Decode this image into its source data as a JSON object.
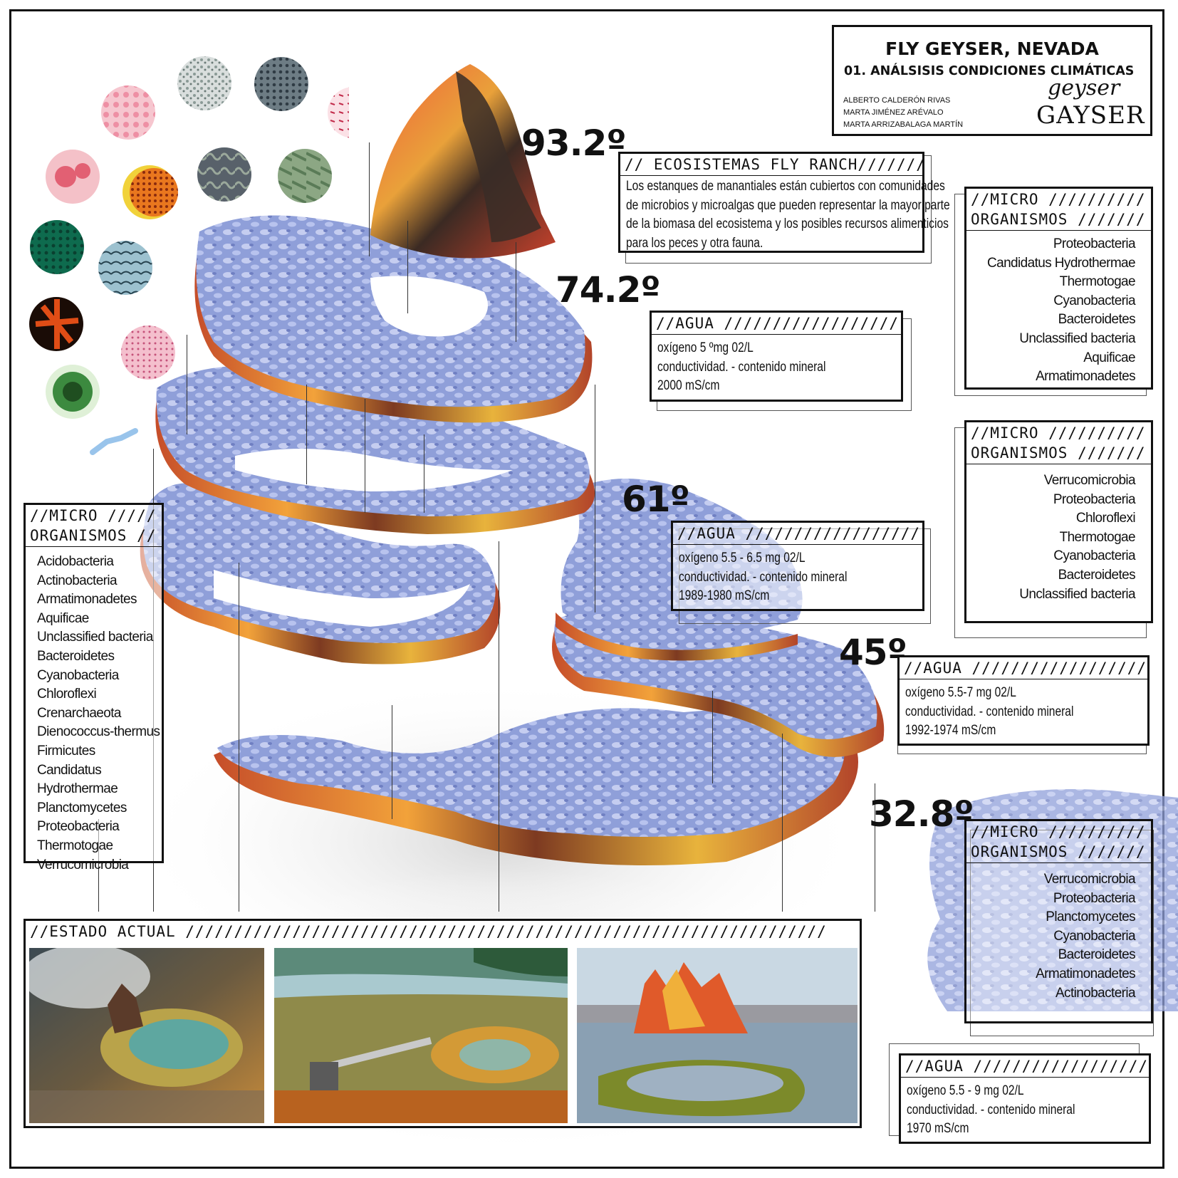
{
  "title": {
    "main": "FLY GEYSER, NEVADA",
    "subtitle": "01. ANÁLSISIS CONDICIONES CLIMÁTICAS",
    "authors": [
      "ALBERTO CALDERÓN RIVAS",
      "MARTA JIMÉNEZ ARÉVALO",
      "MARTA ARRIZABALAGA MARTÍN"
    ],
    "logo_text": [
      "geyser",
      "GAYSER"
    ]
  },
  "temperatures": [
    "93.2º",
    "74.2º",
    "61º",
    "45º",
    "32.8º"
  ],
  "ecosystem": {
    "header": "// ECOSISTEMAS FLY RANCH///////",
    "text": [
      "Los estanques de manantiales están cubiertos con comunidades",
      "de microbios y microalgas que pueden representar la mayor parte",
      "de la biomasa del ecosistema y los posibles recursos alimenticios",
      "para los peces y otra fauna."
    ]
  },
  "micro_header": [
    "//MICRO //////////",
    "ORGANISMOS ///////"
  ],
  "micro_left_header": [
    "//MICRO /////",
    "ORGANISMOS //"
  ],
  "micro_lists": {
    "top": [
      "Proteobacteria",
      "Candidatus Hydrothermae",
      "Thermotogae",
      "Cyanobacteria",
      "Bacteroidetes",
      "Unclassified bacteria",
      "Aquificae",
      "Armatimonadetes"
    ],
    "middle": [
      "Verrucomicrobia",
      "Proteobacteria",
      "Chloroflexi",
      "Thermotogae",
      "Cyanobacteria",
      "Bacteroidetes",
      "Unclassified bacteria"
    ],
    "bottom": [
      "Verrucomicrobia",
      "Proteobacteria",
      "Planctomycetes",
      "Cyanobacteria",
      "Bacteroidetes",
      "Armatimonadetes",
      "Actinobacteria"
    ],
    "left": [
      "Acidobacteria",
      "Actinobacteria",
      "Armatimonadetes",
      "Aquificae",
      "Unclassified bacteria",
      "Bacteroidetes",
      "Cyanobacteria",
      "Chloroflexi",
      "Crenarchaeota",
      "Dienococcus-thermus",
      "Firmicutes",
      "Candidatus Hydrothermae",
      "Planctomycetes",
      "Proteobacteria",
      "Thermotogae",
      "Verrucomicrobia"
    ]
  },
  "water_header": "//AGUA //////////////////",
  "water": [
    {
      "oxygen": "oxígeno 5 ºmg 02/L",
      "cond": "conductividad. - contenido mineral",
      "value": "2000 mS/cm"
    },
    {
      "oxygen": "oxígeno 5.5 - 6.5 mg 02/L",
      "cond": "conductividad. - contenido mineral",
      "value": "1989-1980 mS/cm"
    },
    {
      "oxygen": "oxígeno 5.5-7 mg 02/L",
      "cond": "conductividad. - contenido mineral",
      "value": "1992-1974 mS/cm"
    },
    {
      "oxygen": "oxígeno 5.5 - 9 mg 02/L",
      "cond": "conductividad. - contenido mineral",
      "value": "1970 mS/cm"
    }
  ],
  "estado": {
    "header": "//ESTADO ACTUAL //////////////////////////////////////////////////////////////////"
  }
}
